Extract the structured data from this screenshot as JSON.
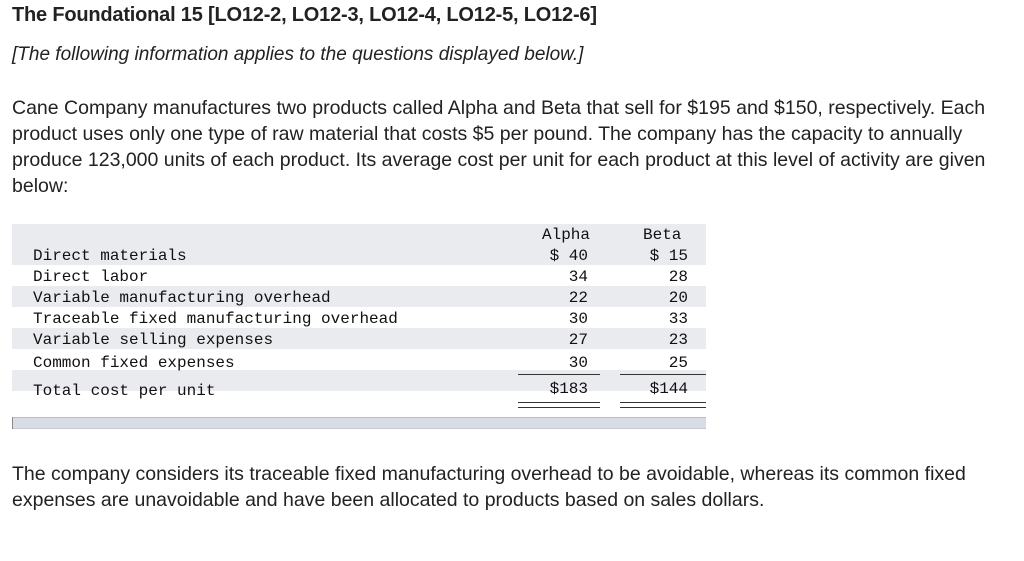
{
  "header": {
    "title": "The Foundational 15 [LO12-2, LO12-3, LO12-4, LO12-5, LO12-6]",
    "subtitle": "[The following information applies to the questions displayed below.]"
  },
  "intro_text": "Cane Company manufactures two products called Alpha and Beta that sell for $195 and $150, respectively. Each product uses only one type of raw material that costs $5 per pound. The company has the capacity to annually produce 123,000 units of each product. Its average cost per unit for each product at this level of activity are given below:",
  "cost_table": {
    "columns": [
      "Alpha",
      "Beta"
    ],
    "rows": [
      {
        "label": "Direct materials",
        "alpha": "$ 40",
        "beta": "$ 15"
      },
      {
        "label": "Direct labor",
        "alpha": "34",
        "beta": "28"
      },
      {
        "label": "Variable manufacturing overhead",
        "alpha": "22",
        "beta": "20"
      },
      {
        "label": "Traceable fixed manufacturing overhead",
        "alpha": "30",
        "beta": "33"
      },
      {
        "label": "Variable selling expenses",
        "alpha": "27",
        "beta": "23"
      },
      {
        "label": "Common fixed expenses",
        "alpha": "30",
        "beta": "25"
      }
    ],
    "total": {
      "label": "Total cost per unit",
      "alpha": "$183",
      "beta": "$144"
    }
  },
  "outro_text": "The company considers its traceable fixed manufacturing overhead to be avoidable, whereas its common fixed expenses are unavoidable and have been allocated to products based on sales dollars."
}
